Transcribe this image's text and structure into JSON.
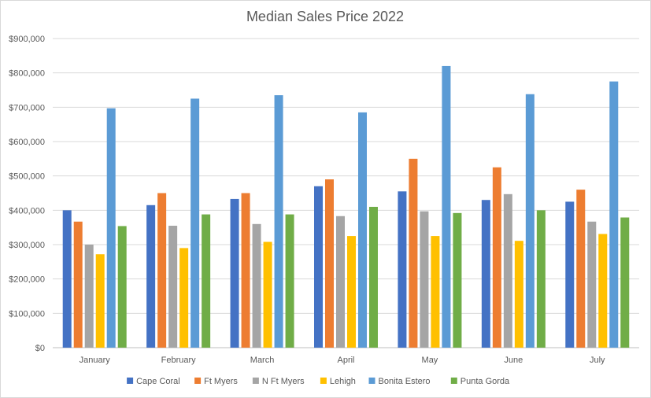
{
  "chart_data": {
    "type": "bar",
    "title": "Median Sales Price 2022",
    "xlabel": "",
    "ylabel": "",
    "ylim": [
      0,
      900000
    ],
    "y_ticks": [
      0,
      100000,
      200000,
      300000,
      400000,
      500000,
      600000,
      700000,
      800000,
      900000
    ],
    "y_tick_labels": [
      "$0",
      "$100,000",
      "$200,000",
      "$300,000",
      "$400,000",
      "$500,000",
      "$600,000",
      "$700,000",
      "$800,000",
      "$900,000"
    ],
    "grid": true,
    "legend_position": "bottom",
    "categories": [
      "January",
      "February",
      "March",
      "April",
      "May",
      "June",
      "July"
    ],
    "series": [
      {
        "name": "Cape Coral",
        "color": "#4472C4",
        "values": [
          400000,
          415000,
          433000,
          470000,
          455000,
          430000,
          425000
        ]
      },
      {
        "name": "Ft Myers",
        "color": "#ED7D31",
        "values": [
          367000,
          450000,
          450000,
          490000,
          550000,
          525000,
          460000
        ]
      },
      {
        "name": "N Ft Myers",
        "color": "#A5A5A5",
        "values": [
          300000,
          355000,
          360000,
          383000,
          397000,
          447000,
          367000
        ]
      },
      {
        "name": "Lehigh",
        "color": "#FFC000",
        "values": [
          272000,
          290000,
          308000,
          325000,
          325000,
          311000,
          331000
        ]
      },
      {
        "name": "Bonita Estero",
        "color": "#5B9BD5",
        "values": [
          697000,
          725000,
          735000,
          685000,
          820000,
          738000,
          775000
        ]
      },
      {
        "name": "Punta Gorda",
        "color": "#70AD47",
        "values": [
          354000,
          388000,
          388000,
          410000,
          392000,
          400000,
          379000
        ]
      }
    ]
  }
}
